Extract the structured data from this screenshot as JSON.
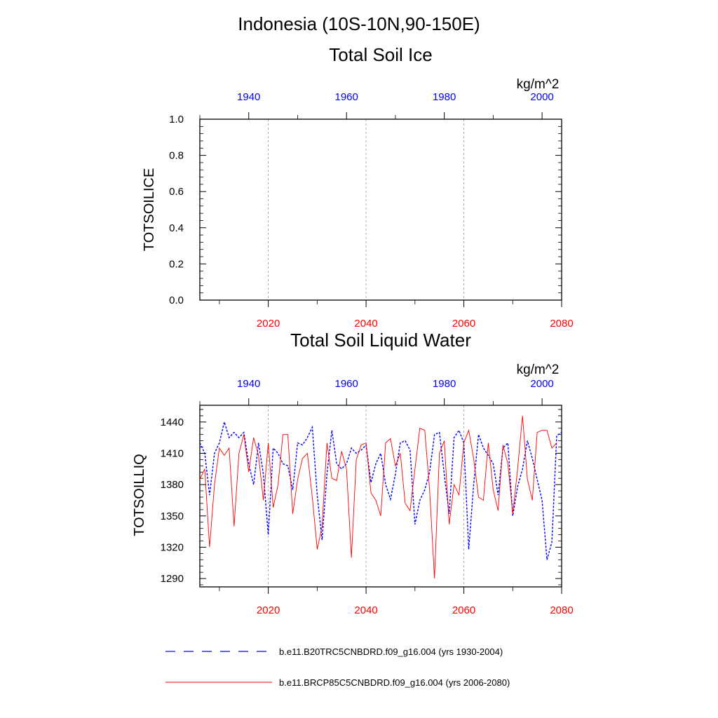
{
  "page": {
    "title": "Indonesia (10S-10N,90-150E)"
  },
  "colors": {
    "top_axis": "#0000ff",
    "bottom_axis": "#ff0000",
    "series1": "#0000ff",
    "series2": "#ff0000",
    "grid": "#999999"
  },
  "legend": {
    "items": [
      {
        "label": "b.e11.B20TRC5CNBDRD.f09_g16.004 (yrs 1930-2004)",
        "color": "#0000ff",
        "dash": "dashed"
      },
      {
        "label": "b.e11.BRCP85C5CNBDRD.f09_g16.004 (yrs 2006-2080)",
        "color": "#ff0000",
        "dash": "solid"
      }
    ]
  },
  "chart_data": [
    {
      "type": "line",
      "title": "Total Soil Ice",
      "units": "kg/m^2",
      "ylabel": "TOTSOILICE",
      "ylim": [
        0,
        1
      ],
      "yticks": [
        "0.0",
        "0.2",
        "0.4",
        "0.6",
        "0.8",
        "1.0"
      ],
      "ytick_values": [
        0,
        0.2,
        0.4,
        0.6,
        0.8,
        1.0
      ],
      "top_axis": {
        "range": [
          1930,
          2004
        ],
        "ticks": [
          "1940",
          "1960",
          "1980",
          "2000"
        ],
        "tick_values": [
          1940,
          1960,
          1980,
          2000
        ]
      },
      "bottom_axis": {
        "range": [
          2006,
          2080
        ],
        "ticks": [
          "2020",
          "2040",
          "2060",
          "2080"
        ],
        "tick_values": [
          2020,
          2040,
          2060,
          2080
        ]
      },
      "grid": "vertical dashed at bottom-axis ticks",
      "series": [
        {
          "name": "b.e11.B20TRC5CNBDRD.f09_g16.004 (yrs 1930-2004)",
          "axis": "top",
          "values": []
        },
        {
          "name": "b.e11.BRCP85C5CNBDRD.f09_g16.004 (yrs 2006-2080)",
          "axis": "bottom",
          "values": []
        }
      ]
    },
    {
      "type": "line",
      "title": "Total Soil Liquid Water",
      "units": "kg/m^2",
      "ylabel": "TOTSOILLIQ",
      "ylim": [
        1282,
        1456
      ],
      "yticks": [
        "1290",
        "1320",
        "1350",
        "1380",
        "1410",
        "1440"
      ],
      "ytick_values": [
        1290,
        1320,
        1350,
        1380,
        1410,
        1440
      ],
      "top_axis": {
        "range": [
          1930,
          2004
        ],
        "ticks": [
          "1940",
          "1960",
          "1980",
          "2000"
        ],
        "tick_values": [
          1940,
          1960,
          1980,
          2000
        ]
      },
      "bottom_axis": {
        "range": [
          2006,
          2080
        ],
        "ticks": [
          "2020",
          "2040",
          "2060",
          "2080"
        ],
        "tick_values": [
          2020,
          2040,
          2060,
          2080
        ]
      },
      "grid": "vertical dashed at bottom-axis ticks",
      "series": [
        {
          "name": "b.e11.B20TRC5CNBDRD.f09_g16.004 (yrs 1930-2004)",
          "axis": "top",
          "x_start": 1930,
          "values": [
            1420,
            1410,
            1370,
            1410,
            1420,
            1440,
            1425,
            1430,
            1425,
            1430,
            1400,
            1380,
            1420,
            1390,
            1332,
            1415,
            1410,
            1400,
            1398,
            1375,
            1420,
            1418,
            1425,
            1435,
            1370,
            1327,
            1390,
            1432,
            1400,
            1395,
            1400,
            1415,
            1410,
            1413,
            1418,
            1382,
            1400,
            1410,
            1380,
            1366,
            1390,
            1420,
            1422,
            1413,
            1342,
            1365,
            1375,
            1392,
            1428,
            1430,
            1390,
            1352,
            1425,
            1432,
            1420,
            1318,
            1380,
            1428,
            1415,
            1408,
            1400,
            1370,
            1415,
            1420,
            1350,
            1378,
            1395,
            1422,
            1405,
            1385,
            1365,
            1308,
            1325,
            1427,
            1430,
            1385,
            1362,
            1410
          ]
        },
        {
          "name": "b.e11.BRCP85C5CNBDRD.f09_g16.004 (yrs 2006-2080)",
          "axis": "bottom",
          "x_start": 2006,
          "values": [
            1385,
            1395,
            1320,
            1380,
            1415,
            1408,
            1415,
            1340,
            1410,
            1428,
            1392,
            1425,
            1408,
            1365,
            1420,
            1358,
            1380,
            1428,
            1428,
            1352,
            1385,
            1405,
            1410,
            1368,
            1318,
            1340,
            1420,
            1386,
            1384,
            1412,
            1395,
            1310,
            1404,
            1418,
            1420,
            1372,
            1365,
            1350,
            1420,
            1424,
            1398,
            1410,
            1362,
            1355,
            1395,
            1434,
            1432,
            1375,
            1290,
            1410,
            1422,
            1342,
            1380,
            1370,
            1420,
            1432,
            1405,
            1368,
            1365,
            1420,
            1375,
            1355,
            1418,
            1400,
            1352,
            1395,
            1446,
            1385,
            1365,
            1430,
            1432,
            1432,
            1415,
            1420
          ]
        }
      ]
    }
  ]
}
